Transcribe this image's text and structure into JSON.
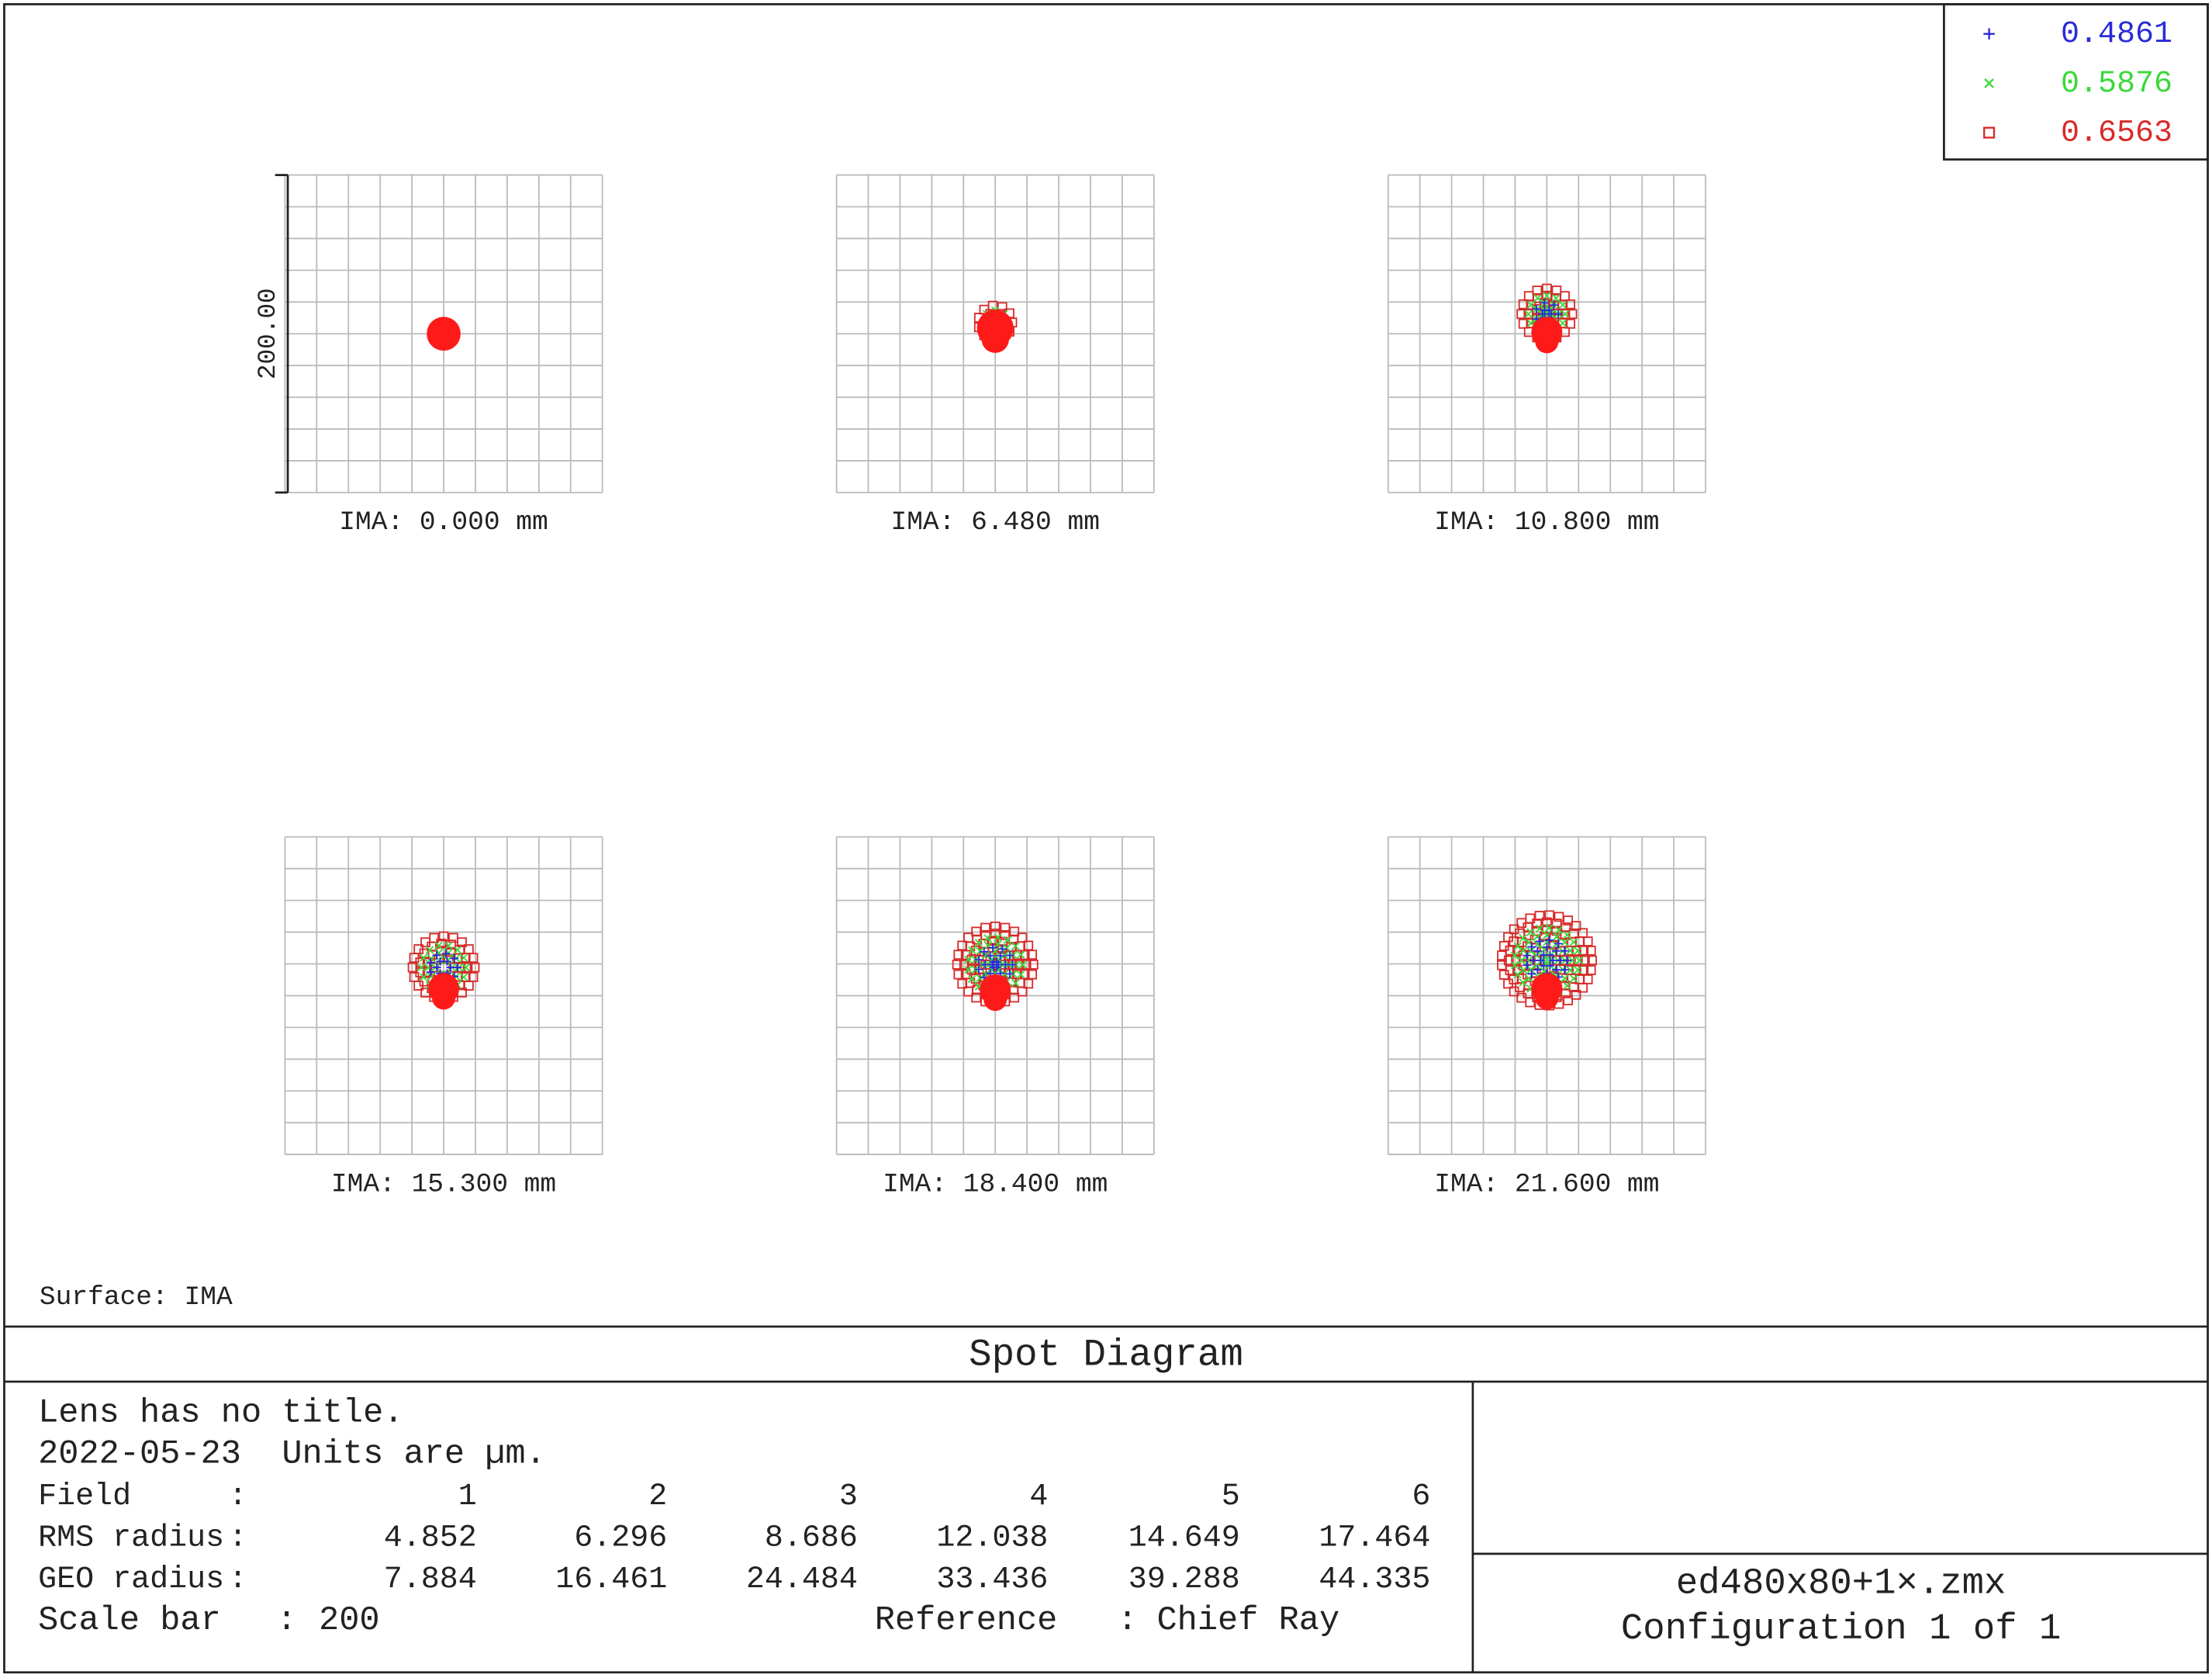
{
  "legend": [
    "0.4861",
    "0.5876",
    "0.6563"
  ],
  "plots": [
    {
      "label": "IMA: 0.000 mm"
    },
    {
      "label": "IMA: 6.480 mm"
    },
    {
      "label": "IMA: 10.800 mm"
    },
    {
      "label": "IMA: 15.300 mm"
    },
    {
      "label": "IMA: 18.400 mm"
    },
    {
      "label": "IMA: 21.600 mm"
    }
  ],
  "scale_bar_label": "200.00",
  "surface": "Surface: IMA",
  "title": "Spot Diagram",
  "info": {
    "lines": [
      "Lens has no title.",
      "2022-05-23  Units are µm."
    ],
    "separator": ":",
    "rows": [
      {
        "label": "Field",
        "values": [
          "1",
          "2",
          "3",
          "4",
          "5",
          "6"
        ]
      },
      {
        "label": "RMS radius",
        "values": [
          "4.852",
          "6.296",
          "8.686",
          "12.038",
          "14.649",
          "17.464"
        ]
      },
      {
        "label": "GEO radius",
        "values": [
          "7.884",
          "16.461",
          "24.484",
          "33.436",
          "39.288",
          "44.335"
        ]
      }
    ],
    "scale_bar": {
      "label": "Scale bar",
      "value": "200"
    },
    "reference": {
      "label": "Reference",
      "value": "Chief Ray"
    }
  },
  "footer": {
    "file": "ed480x80+1×.zmx",
    "configuration": "Configuration 1 of 1"
  }
}
